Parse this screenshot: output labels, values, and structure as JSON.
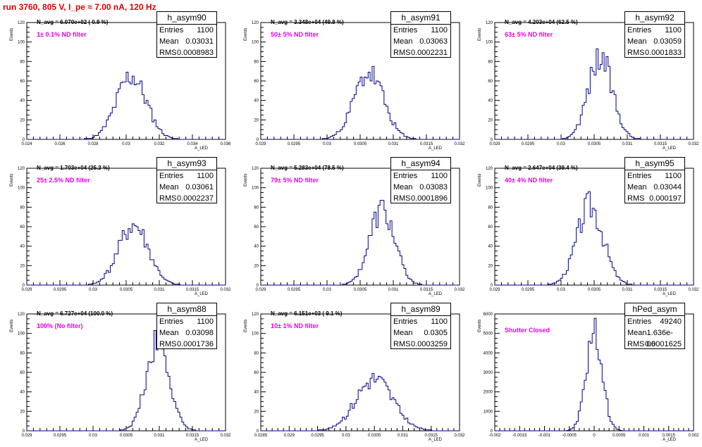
{
  "run_title": "run 3760,   805 V, I_pe ≈ 7.00 nA, 120 Hz",
  "stat_labels": {
    "entries": "Entries",
    "mean": "Mean",
    "rms": "RMS"
  },
  "chart_data": [
    {
      "type": "bar",
      "title": "h_asym90",
      "xlabel": "A_LED",
      "ylabel": "Events",
      "xlim": [
        0.024,
        0.036
      ],
      "ylim": [
        0,
        120
      ],
      "xticks": [
        "0.024",
        "0.026",
        "0.028",
        "0.03",
        "0.032",
        "0.034",
        "0.036"
      ],
      "yticks": [
        "0",
        "20",
        "40",
        "60",
        "80",
        "100",
        "120"
      ],
      "navg": "N_avg = 6.070e+02 ( 0.9 %)",
      "filter": "1± 0.1% ND filter",
      "stats": {
        "entries": "1100",
        "mean": "0.03031",
        "rms": "0.0008983"
      },
      "mean": 0.03031,
      "rms": 0.0008983,
      "peak": 65,
      "nbins": 100,
      "seed": 11
    },
    {
      "type": "bar",
      "title": "h_asym91",
      "xlabel": "A_LED",
      "ylabel": "Events",
      "xlim": [
        0.029,
        0.032
      ],
      "ylim": [
        0,
        120
      ],
      "xticks": [
        "0.029",
        "0.0295",
        "0.03",
        "0.0305",
        "0.031",
        "0.0315",
        "0.032"
      ],
      "yticks": [
        "0",
        "20",
        "40",
        "60",
        "80",
        "100",
        "120"
      ],
      "navg": "N_avg = 3.348e+04 (49.8 %)",
      "filter": "50± 5% ND filter",
      "stats": {
        "entries": "1100",
        "mean": "0.03063",
        "rms": "0.0002231"
      },
      "mean": 0.03063,
      "rms": 0.0002231,
      "peak": 68,
      "nbins": 100,
      "seed": 23
    },
    {
      "type": "bar",
      "title": "h_asym92",
      "xlabel": "A_LED",
      "ylabel": "Events",
      "xlim": [
        0.029,
        0.032
      ],
      "ylim": [
        0,
        120
      ],
      "xticks": [
        "0.029",
        "0.0295",
        "0.03",
        "0.0305",
        "0.031",
        "0.0315",
        "0.032"
      ],
      "yticks": [
        "0",
        "20",
        "40",
        "60",
        "80",
        "100",
        "120"
      ],
      "navg": "N_avg = 4.203e+04 (62.5 %)",
      "filter": "63± 5% ND filter",
      "stats": {
        "entries": "1100",
        "mean": "0.03059",
        "rms": "0.0001833"
      },
      "mean": 0.03059,
      "rms": 0.0001833,
      "peak": 84,
      "nbins": 100,
      "seed": 37
    },
    {
      "type": "bar",
      "title": "h_asym93",
      "xlabel": "A_LED",
      "ylabel": "Events",
      "xlim": [
        0.029,
        0.032
      ],
      "ylim": [
        0,
        120
      ],
      "xticks": [
        "0.029",
        "0.0295",
        "0.03",
        "0.0305",
        "0.031",
        "0.0315",
        "0.032"
      ],
      "yticks": [
        "0",
        "20",
        "40",
        "60",
        "80",
        "100",
        "120"
      ],
      "navg": "N_avg = 1.703e+04 (25.3 %)",
      "filter": "25± 2.5% ND filter",
      "stats": {
        "entries": "1100",
        "mean": "0.03061",
        "rms": "0.0002237"
      },
      "mean": 0.03061,
      "rms": 0.0002237,
      "peak": 61,
      "nbins": 100,
      "seed": 41
    },
    {
      "type": "bar",
      "title": "h_asym94",
      "xlabel": "A_LED",
      "ylabel": "Events",
      "xlim": [
        0.029,
        0.032
      ],
      "ylim": [
        0,
        120
      ],
      "xticks": [
        "0.029",
        "0.0295",
        "0.03",
        "0.0305",
        "0.031",
        "0.0315",
        "0.032"
      ],
      "yticks": [
        "0",
        "20",
        "40",
        "60",
        "80",
        "100",
        "120"
      ],
      "navg": "N_avg = 5.283e+04 (78.5 %)",
      "filter": "79± 5% ND filter",
      "stats": {
        "entries": "1100",
        "mean": "0.03083",
        "rms": "0.0001896"
      },
      "mean": 0.03083,
      "rms": 0.0001896,
      "peak": 77,
      "nbins": 100,
      "seed": 53
    },
    {
      "type": "bar",
      "title": "h_asym95",
      "xlabel": "A_LED",
      "ylabel": "Events",
      "xlim": [
        0.029,
        0.032
      ],
      "ylim": [
        0,
        120
      ],
      "xticks": [
        "0.029",
        "0.0295",
        "0.03",
        "0.0305",
        "0.031",
        "0.0315",
        "0.032"
      ],
      "yticks": [
        "0",
        "20",
        "40",
        "60",
        "80",
        "100",
        "120"
      ],
      "navg": "N_avg = 2.647e+04 (39.4 %)",
      "filter": "40± 4% ND filter",
      "stats": {
        "entries": "1100",
        "mean": "0.03044",
        "rms": "0.000197"
      },
      "mean": 0.03044,
      "rms": 0.000197,
      "peak": 82,
      "nbins": 100,
      "seed": 67
    },
    {
      "type": "bar",
      "title": "h_asym88",
      "xlabel": "A_LED",
      "ylabel": "Events",
      "xlim": [
        0.029,
        0.032
      ],
      "ylim": [
        0,
        120
      ],
      "xticks": [
        "0.029",
        "0.0295",
        "0.03",
        "0.0305",
        "0.031",
        "0.0315",
        "0.032"
      ],
      "yticks": [
        "0",
        "20",
        "40",
        "60",
        "80",
        "100",
        "120"
      ],
      "navg": "N_avg = 6.727e+04 (100.0 %)",
      "filter": "100% (No filter)",
      "stats": {
        "entries": "1100",
        "mean": "0.03098",
        "rms": "0.0001736"
      },
      "mean": 0.03098,
      "rms": 0.0001736,
      "peak": 92,
      "nbins": 100,
      "seed": 71
    },
    {
      "type": "bar",
      "title": "h_asym89",
      "xlabel": "A_LED",
      "ylabel": "Events",
      "xlim": [
        0.0285,
        0.032
      ],
      "ylim": [
        0,
        120
      ],
      "xticks": [
        "0.0285",
        "0.029",
        "0.0295",
        "0.03",
        "0.0305",
        "0.031",
        "0.0315",
        "0.032"
      ],
      "yticks": [
        "0",
        "20",
        "40",
        "60",
        "80",
        "100",
        "120"
      ],
      "navg": "N_avg = 6.151e+03 ( 9.1 %)",
      "filter": "10± 1% ND filter",
      "stats": {
        "entries": "1100",
        "mean": "0.0305",
        "rms": "0.0003259"
      },
      "mean": 0.0305,
      "rms": 0.0003259,
      "peak": 53,
      "nbins": 100,
      "seed": 83
    },
    {
      "type": "bar",
      "title": "hPed_asym",
      "xlabel": "A_LED",
      "ylabel": "Events",
      "xlim": [
        -0.002,
        0.002
      ],
      "ylim": [
        0,
        6000
      ],
      "xticks": [
        "-0.002",
        "-0.0015",
        "-0.001",
        "-0.0005",
        "0",
        "0.0005",
        "0.001",
        "0.0015",
        "0.002"
      ],
      "yticks": [
        "0",
        "1000",
        "2000",
        "3000",
        "4000",
        "5000",
        "6000"
      ],
      "navg": "",
      "filter": "Shutter Closed",
      "stats": {
        "entries": "49240",
        "mean": "1.636e-06",
        "rms": "0.0001625"
      },
      "mean": 1.6e-06,
      "rms": 0.0001625,
      "peak": 5000,
      "nbins": 100,
      "seed": 97
    }
  ]
}
